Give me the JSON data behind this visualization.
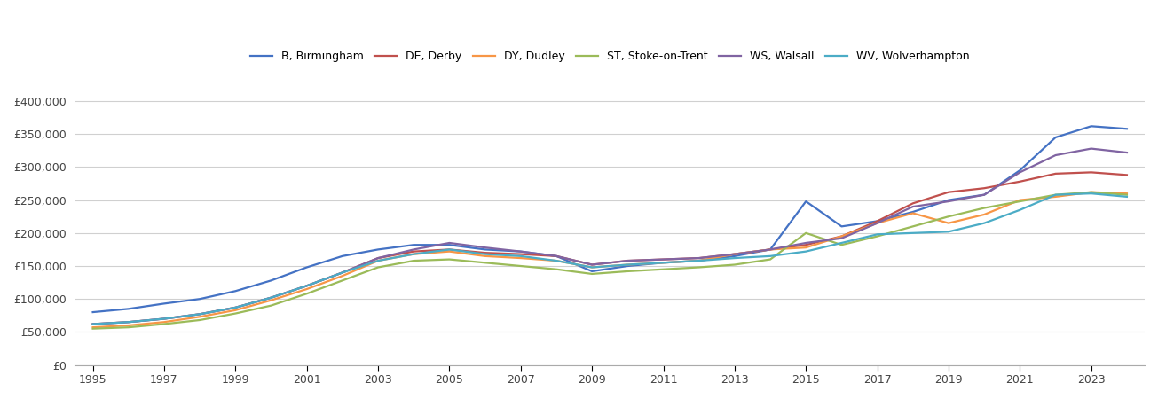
{
  "years": [
    1995,
    1996,
    1997,
    1998,
    1999,
    2000,
    2001,
    2002,
    2003,
    2004,
    2005,
    2006,
    2007,
    2008,
    2009,
    2010,
    2011,
    2012,
    2013,
    2014,
    2015,
    2016,
    2017,
    2018,
    2019,
    2020,
    2021,
    2022,
    2023,
    2024
  ],
  "series": {
    "B, Birmingham": {
      "color": "#4472c4",
      "values": [
        80000,
        85000,
        93000,
        100000,
        112000,
        128000,
        148000,
        165000,
        175000,
        182000,
        182000,
        175000,
        172000,
        165000,
        142000,
        150000,
        155000,
        158000,
        165000,
        175000,
        248000,
        210000,
        218000,
        232000,
        250000,
        258000,
        295000,
        345000,
        362000,
        358000
      ]
    },
    "DE, Derby": {
      "color": "#c0504d",
      "values": [
        62000,
        65000,
        70000,
        77000,
        87000,
        102000,
        120000,
        140000,
        162000,
        172000,
        175000,
        170000,
        168000,
        165000,
        152000,
        158000,
        160000,
        162000,
        168000,
        175000,
        182000,
        195000,
        218000,
        245000,
        262000,
        268000,
        278000,
        290000,
        292000,
        288000
      ]
    },
    "DY, Dudley": {
      "color": "#f79646",
      "values": [
        57000,
        60000,
        65000,
        73000,
        83000,
        98000,
        115000,
        135000,
        158000,
        168000,
        172000,
        165000,
        162000,
        158000,
        148000,
        152000,
        155000,
        158000,
        168000,
        175000,
        178000,
        195000,
        215000,
        230000,
        215000,
        228000,
        250000,
        255000,
        262000,
        260000
      ]
    },
    "ST, Stoke-on-Trent": {
      "color": "#9bbb59",
      "values": [
        55000,
        57000,
        62000,
        68000,
        78000,
        90000,
        108000,
        128000,
        148000,
        158000,
        160000,
        155000,
        150000,
        145000,
        138000,
        142000,
        145000,
        148000,
        152000,
        160000,
        200000,
        182000,
        195000,
        210000,
        225000,
        238000,
        248000,
        258000,
        262000,
        258000
      ]
    },
    "WS, Walsall": {
      "color": "#8064a2",
      "values": [
        62000,
        65000,
        70000,
        77000,
        87000,
        102000,
        120000,
        140000,
        162000,
        175000,
        185000,
        178000,
        172000,
        165000,
        152000,
        158000,
        160000,
        162000,
        168000,
        175000,
        185000,
        192000,
        215000,
        240000,
        248000,
        258000,
        292000,
        318000,
        328000,
        322000
      ]
    },
    "WV, Wolverhampton": {
      "color": "#4bacc6",
      "values": [
        62000,
        65000,
        70000,
        77000,
        87000,
        102000,
        120000,
        140000,
        158000,
        168000,
        175000,
        168000,
        165000,
        158000,
        148000,
        152000,
        155000,
        158000,
        162000,
        165000,
        172000,
        185000,
        198000,
        200000,
        202000,
        215000,
        235000,
        258000,
        260000,
        255000
      ]
    }
  },
  "xlim_min": 1994.5,
  "xlim_max": 2024.5,
  "ylim": [
    0,
    420000
  ],
  "yticks": [
    0,
    50000,
    100000,
    150000,
    200000,
    250000,
    300000,
    350000,
    400000
  ],
  "xticks": [
    1995,
    1997,
    1999,
    2001,
    2003,
    2005,
    2007,
    2009,
    2011,
    2013,
    2015,
    2017,
    2019,
    2021,
    2023
  ],
  "background_color": "#ffffff",
  "grid_color": "#d0d0d0",
  "linewidth": 1.6
}
